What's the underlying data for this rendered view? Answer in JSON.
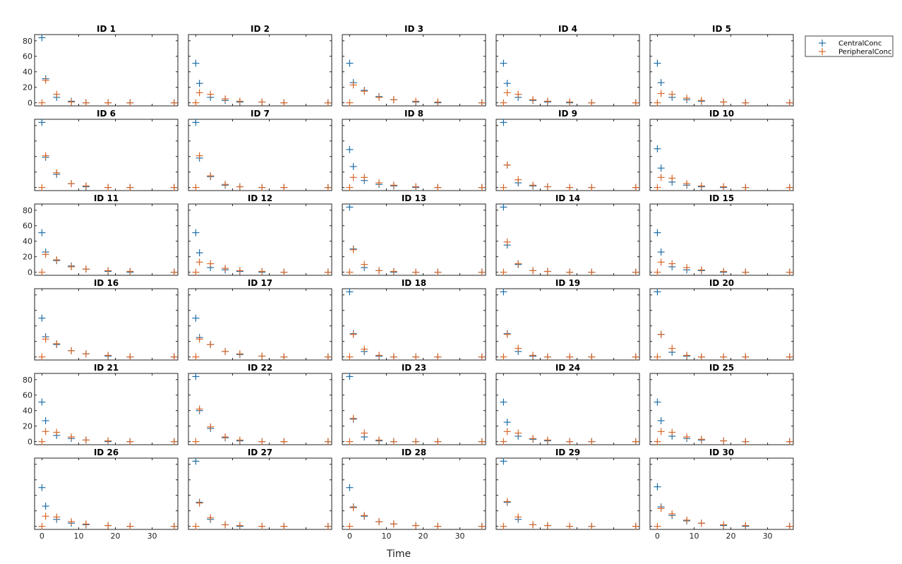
{
  "colors": {
    "central": "#1f6fa8",
    "peripheral": "#d9692b",
    "axis": "#222222"
  },
  "chart_data": {
    "type": "scatter",
    "xlabel": "Time",
    "xlim": [
      -2,
      37
    ],
    "ylim": [
      -4,
      88
    ],
    "xticks": [
      0,
      10,
      20,
      30
    ],
    "yticks": [
      0,
      20,
      40,
      60,
      80
    ],
    "marker": "plus",
    "legend": {
      "placement": "top-right-outside",
      "entries": [
        "CentralConc",
        "PeripheralConc"
      ]
    },
    "times": [
      0,
      1,
      4,
      8,
      12,
      18,
      24,
      36
    ],
    "panels": [
      {
        "title": "ID 1",
        "series": [
          {
            "name": "CentralConc",
            "values": [
              84,
              31,
              7,
              2,
              0,
              0,
              0,
              0
            ]
          },
          {
            "name": "PeripheralConc",
            "values": [
              0,
              29,
              11,
              1,
              0,
              0,
              0,
              0
            ]
          }
        ]
      },
      {
        "title": "ID 2",
        "series": [
          {
            "name": "CentralConc",
            "values": [
              51,
              25,
              7,
              3,
              1,
              1,
              0,
              0
            ]
          },
          {
            "name": "PeripheralConc",
            "values": [
              0,
              13,
              11,
              5,
              2,
              1,
              0,
              0
            ]
          }
        ]
      },
      {
        "title": "ID 3",
        "series": [
          {
            "name": "CentralConc",
            "values": [
              51,
              26,
              16,
              8,
              4,
              1,
              0,
              0
            ]
          },
          {
            "name": "PeripheralConc",
            "values": [
              0,
              23,
              15,
              7,
              4,
              2,
              1,
              0
            ]
          }
        ]
      },
      {
        "title": "ID 4",
        "series": [
          {
            "name": "CentralConc",
            "values": [
              51,
              25,
              7,
              3,
              1,
              0,
              0,
              0
            ]
          },
          {
            "name": "PeripheralConc",
            "values": [
              0,
              13,
              11,
              4,
              2,
              1,
              0,
              0
            ]
          }
        ]
      },
      {
        "title": "ID 5",
        "series": [
          {
            "name": "CentralConc",
            "values": [
              51,
              26,
              7,
              4,
              2,
              1,
              0,
              0
            ]
          },
          {
            "name": "PeripheralConc",
            "values": [
              0,
              12,
              11,
              6,
              3,
              1,
              0,
              0
            ]
          }
        ]
      },
      {
        "title": "ID 6",
        "series": [
          {
            "name": "CentralConc",
            "values": [
              84,
              39,
              17,
              5,
              1,
              0,
              0,
              0
            ]
          },
          {
            "name": "PeripheralConc",
            "values": [
              0,
              41,
              19,
              5,
              2,
              0,
              0,
              0
            ]
          }
        ]
      },
      {
        "title": "ID 7",
        "series": [
          {
            "name": "CentralConc",
            "values": [
              84,
              38,
              14,
              3,
              1,
              0,
              0,
              0
            ]
          },
          {
            "name": "PeripheralConc",
            "values": [
              0,
              41,
              15,
              4,
              1,
              0,
              0,
              0
            ]
          }
        ]
      },
      {
        "title": "ID 8",
        "series": [
          {
            "name": "CentralConc",
            "values": [
              49,
              27,
              9,
              4,
              2,
              0,
              0,
              0
            ]
          },
          {
            "name": "PeripheralConc",
            "values": [
              0,
              13,
              13,
              6,
              3,
              1,
              0,
              0
            ]
          }
        ]
      },
      {
        "title": "ID 9",
        "series": [
          {
            "name": "CentralConc",
            "values": [
              84,
              29,
              6,
              2,
              1,
              0,
              0,
              0
            ]
          },
          {
            "name": "PeripheralConc",
            "values": [
              0,
              29,
              10,
              3,
              1,
              0,
              0,
              0
            ]
          }
        ]
      },
      {
        "title": "ID 10",
        "series": [
          {
            "name": "CentralConc",
            "values": [
              50,
              25,
              7,
              3,
              1,
              0,
              0,
              0
            ]
          },
          {
            "name": "PeripheralConc",
            "values": [
              0,
              13,
              12,
              5,
              2,
              1,
              0,
              0
            ]
          }
        ]
      },
      {
        "title": "ID 11",
        "series": [
          {
            "name": "CentralConc",
            "values": [
              51,
              26,
              15,
              8,
              4,
              1,
              0,
              0
            ]
          },
          {
            "name": "PeripheralConc",
            "values": [
              0,
              23,
              16,
              7,
              4,
              2,
              1,
              0
            ]
          }
        ]
      },
      {
        "title": "ID 12",
        "series": [
          {
            "name": "CentralConc",
            "values": [
              51,
              25,
              6,
              3,
              1,
              0,
              0,
              0
            ]
          },
          {
            "name": "PeripheralConc",
            "values": [
              0,
              13,
              11,
              5,
              2,
              1,
              0,
              0
            ]
          }
        ]
      },
      {
        "title": "ID 13",
        "series": [
          {
            "name": "CentralConc",
            "values": [
              84,
              30,
              6,
              2,
              0,
              0,
              0,
              0
            ]
          },
          {
            "name": "PeripheralConc",
            "values": [
              0,
              29,
              10,
              2,
              1,
              0,
              0,
              0
            ]
          }
        ]
      },
      {
        "title": "ID 14",
        "series": [
          {
            "name": "CentralConc",
            "values": [
              84,
              35,
              10,
              2,
              1,
              0,
              0,
              0
            ]
          },
          {
            "name": "PeripheralConc",
            "values": [
              0,
              39,
              11,
              2,
              1,
              0,
              0,
              0
            ]
          }
        ]
      },
      {
        "title": "ID 15",
        "series": [
          {
            "name": "CentralConc",
            "values": [
              51,
              26,
              7,
              3,
              2,
              0,
              0,
              0
            ]
          },
          {
            "name": "PeripheralConc",
            "values": [
              0,
              13,
              11,
              6,
              3,
              1,
              0,
              0
            ]
          }
        ]
      },
      {
        "title": "ID 16",
        "series": [
          {
            "name": "CentralConc",
            "values": [
              50,
              26,
              16,
              8,
              4,
              1,
              0,
              0
            ]
          },
          {
            "name": "PeripheralConc",
            "values": [
              0,
              23,
              17,
              8,
              4,
              2,
              0,
              0
            ]
          }
        ]
      },
      {
        "title": "ID 17",
        "series": [
          {
            "name": "CentralConc",
            "values": [
              50,
              25,
              16,
              7,
              3,
              1,
              0,
              0
            ]
          },
          {
            "name": "PeripheralConc",
            "values": [
              0,
              23,
              16,
              7,
              4,
              1,
              0,
              0
            ]
          }
        ]
      },
      {
        "title": "ID 18",
        "series": [
          {
            "name": "CentralConc",
            "values": [
              84,
              30,
              7,
              1,
              0,
              0,
              0,
              0
            ]
          },
          {
            "name": "PeripheralConc",
            "values": [
              0,
              29,
              10,
              2,
              0,
              0,
              0,
              0
            ]
          }
        ]
      },
      {
        "title": "ID 19",
        "series": [
          {
            "name": "CentralConc",
            "values": [
              84,
              30,
              7,
              1,
              0,
              0,
              0,
              0
            ]
          },
          {
            "name": "PeripheralConc",
            "values": [
              0,
              29,
              11,
              2,
              0,
              0,
              0,
              0
            ]
          }
        ]
      },
      {
        "title": "ID 20",
        "series": [
          {
            "name": "CentralConc",
            "values": [
              84,
              29,
              6,
              1,
              0,
              0,
              0,
              0
            ]
          },
          {
            "name": "PeripheralConc",
            "values": [
              0,
              29,
              11,
              2,
              0,
              0,
              0,
              0
            ]
          }
        ]
      },
      {
        "title": "ID 21",
        "series": [
          {
            "name": "CentralConc",
            "values": [
              51,
              27,
              8,
              4,
              2,
              0,
              0,
              0
            ]
          },
          {
            "name": "PeripheralConc",
            "values": [
              0,
              13,
              12,
              6,
              2,
              1,
              0,
              0
            ]
          }
        ]
      },
      {
        "title": "ID 22",
        "series": [
          {
            "name": "CentralConc",
            "values": [
              84,
              40,
              17,
              5,
              1,
              0,
              0,
              0
            ]
          },
          {
            "name": "PeripheralConc",
            "values": [
              0,
              42,
              19,
              6,
              2,
              0,
              0,
              0
            ]
          }
        ]
      },
      {
        "title": "ID 23",
        "series": [
          {
            "name": "CentralConc",
            "values": [
              84,
              29,
              6,
              1,
              0,
              0,
              0,
              0
            ]
          },
          {
            "name": "PeripheralConc",
            "values": [
              0,
              30,
              11,
              2,
              0,
              0,
              0,
              0
            ]
          }
        ]
      },
      {
        "title": "ID 24",
        "series": [
          {
            "name": "CentralConc",
            "values": [
              51,
              25,
              7,
              3,
              1,
              0,
              0,
              0
            ]
          },
          {
            "name": "PeripheralConc",
            "values": [
              0,
              13,
              11,
              4,
              2,
              0,
              0,
              0
            ]
          }
        ]
      },
      {
        "title": "ID 25",
        "series": [
          {
            "name": "CentralConc",
            "values": [
              51,
              27,
              7,
              4,
              2,
              1,
              0,
              0
            ]
          },
          {
            "name": "PeripheralConc",
            "values": [
              0,
              13,
              12,
              6,
              3,
              1,
              0,
              0
            ]
          }
        ]
      },
      {
        "title": "ID 26",
        "series": [
          {
            "name": "CentralConc",
            "values": [
              50,
              26,
              9,
              4,
              2,
              1,
              0,
              0
            ]
          },
          {
            "name": "PeripheralConc",
            "values": [
              0,
              13,
              12,
              6,
              3,
              1,
              0,
              0
            ]
          }
        ]
      },
      {
        "title": "ID 27",
        "series": [
          {
            "name": "CentralConc",
            "values": [
              84,
              31,
              9,
              2,
              0,
              0,
              0,
              0
            ]
          },
          {
            "name": "PeripheralConc",
            "values": [
              0,
              30,
              11,
              2,
              1,
              0,
              0,
              0
            ]
          }
        ]
      },
      {
        "title": "ID 28",
        "series": [
          {
            "name": "CentralConc",
            "values": [
              50,
              25,
              13,
              6,
              3,
              1,
              0,
              0
            ]
          },
          {
            "name": "PeripheralConc",
            "values": [
              0,
              24,
              14,
              6,
              3,
              1,
              0,
              0
            ]
          }
        ]
      },
      {
        "title": "ID 29",
        "series": [
          {
            "name": "CentralConc",
            "values": [
              84,
              31,
              9,
              2,
              1,
              0,
              0,
              0
            ]
          },
          {
            "name": "PeripheralConc",
            "values": [
              0,
              32,
              12,
              2,
              1,
              0,
              0,
              0
            ]
          }
        ]
      },
      {
        "title": "ID 30",
        "series": [
          {
            "name": "CentralConc",
            "values": [
              51,
              25,
              14,
              7,
              4,
              1,
              0,
              0
            ]
          },
          {
            "name": "PeripheralConc",
            "values": [
              0,
              23,
              16,
              8,
              4,
              2,
              1,
              0
            ]
          }
        ]
      }
    ]
  }
}
